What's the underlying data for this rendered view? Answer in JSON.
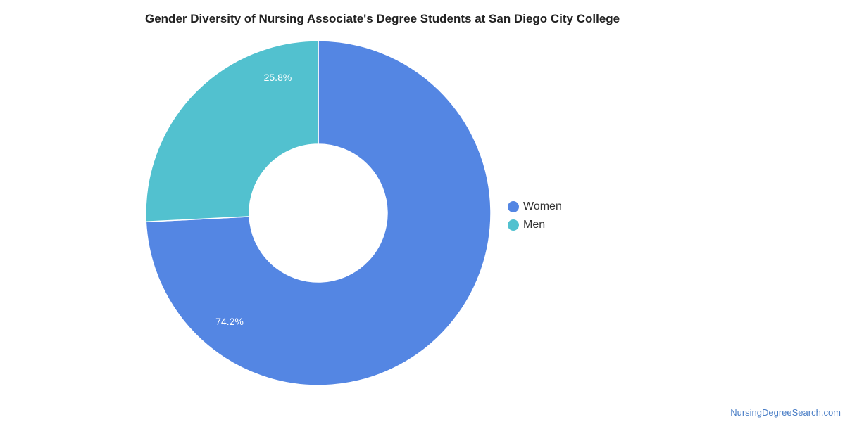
{
  "chart_data": {
    "type": "pie",
    "variant": "donut",
    "title": "Gender Diversity of Nursing Associate's Degree Students at San Diego City College",
    "slices": [
      {
        "name": "Women",
        "value": 74.2,
        "label": "74.2%",
        "color": "#5486e3"
      },
      {
        "name": "Men",
        "value": 25.8,
        "label": "25.8%",
        "color": "#52c1cf"
      }
    ],
    "legend_position": "right"
  },
  "credit": "NursingDegreeSearch.com"
}
